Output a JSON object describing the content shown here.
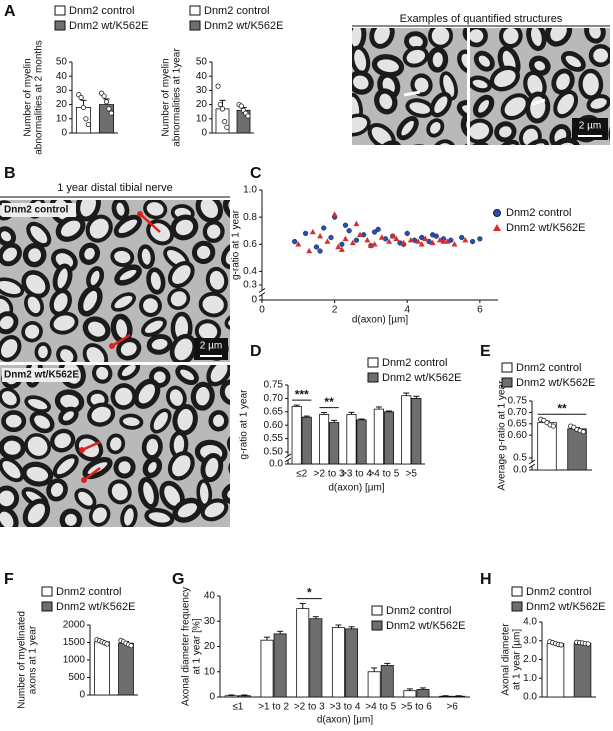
{
  "figure": {
    "panels": [
      "A",
      "B",
      "C",
      "D",
      "E",
      "F",
      "G",
      "H"
    ],
    "a_images": {
      "title": "Examples of quantified structures",
      "scale": "2 µm"
    },
    "b_images": {
      "title": "1 year distal tibial nerve",
      "labels": [
        "Dnm2 control",
        "Dnm2 wt/K562E"
      ],
      "scale": "2 µm"
    }
  },
  "chart_data": [
    {
      "type": "bar",
      "ylabel": [
        "Number of myelin",
        "abnormalities at 2 months"
      ],
      "ylim": [
        0,
        50
      ],
      "yticks": [
        0,
        10,
        20,
        30,
        40,
        50
      ],
      "series": [
        {
          "name": "Dnm2 control",
          "color": "#ffffff",
          "values": [
            18
          ],
          "errors": [
            5
          ],
          "points": [
            [
              27,
              25,
              18,
              10,
              6
            ]
          ]
        },
        {
          "name": "Dnm2 wt/K562E",
          "color": "#6e6e6e",
          "values": [
            20
          ],
          "errors": [
            4
          ],
          "points": [
            [
              28,
              26,
              22,
              17,
              14
            ]
          ]
        }
      ]
    },
    {
      "type": "bar",
      "ylabel": [
        "Number of myelin",
        "abnormalities at 1year"
      ],
      "ylim": [
        0,
        50
      ],
      "yticks": [
        0,
        10,
        20,
        30,
        40,
        50
      ],
      "series": [
        {
          "name": "Dnm2 control",
          "color": "#ffffff",
          "values": [
            17
          ],
          "errors": [
            6
          ],
          "points": [
            [
              33,
              20,
              17,
              8,
              4
            ]
          ]
        },
        {
          "name": "Dnm2 wt/K562E",
          "color": "#6e6e6e",
          "values": [
            16
          ],
          "errors": [
            2
          ],
          "points": [
            [
              20,
              19,
              16,
              14,
              12
            ]
          ]
        }
      ]
    },
    {
      "type": "scatter",
      "ylabel": [
        "g-ratio at 1 year"
      ],
      "xlabel": "d(axon) [µm]",
      "xlim": [
        0,
        6.5
      ],
      "xticks": [
        0,
        2,
        4,
        6
      ],
      "ylim": [
        0.3,
        1.0
      ],
      "yticks": [
        0.3,
        0.4,
        0.6,
        0.8,
        {
          "value": 1,
          "label": "1.0"
        }
      ],
      "ybreak_ticks": [
        0
      ],
      "series": [
        {
          "name": "Dnm2 control",
          "color": "#2a4fa8",
          "marker": "circle",
          "x": [
            0.9,
            1.2,
            1.5,
            1.7,
            1.9,
            2.0,
            2.2,
            2.4,
            2.6,
            2.8,
            3.0,
            3.2,
            3.4,
            3.6,
            3.8,
            4.0,
            4.2,
            4.4,
            4.6,
            4.8,
            5.0,
            5.2,
            5.5,
            5.8,
            6.0,
            1.6,
            2.3,
            3.1,
            3.9,
            4.7
          ],
          "y": [
            0.62,
            0.68,
            0.58,
            0.72,
            0.65,
            0.8,
            0.6,
            0.7,
            0.63,
            0.67,
            0.59,
            0.71,
            0.64,
            0.66,
            0.61,
            0.68,
            0.63,
            0.65,
            0.62,
            0.66,
            0.64,
            0.63,
            0.65,
            0.62,
            0.64,
            0.55,
            0.74,
            0.69,
            0.6,
            0.67
          ]
        },
        {
          "name": "Dnm2 wt/K562E",
          "color": "#d32f2f",
          "marker": "triangle",
          "x": [
            1.0,
            1.3,
            1.6,
            1.8,
            2.0,
            2.1,
            2.3,
            2.5,
            2.7,
            2.9,
            3.1,
            3.3,
            3.5,
            3.7,
            3.9,
            4.1,
            4.3,
            4.5,
            4.7,
            4.9,
            5.1,
            5.3,
            5.6,
            1.4,
            2.2,
            2.6,
            3.0,
            3.6,
            4.4,
            5.0
          ],
          "y": [
            0.6,
            0.55,
            0.66,
            0.62,
            0.82,
            0.58,
            0.64,
            0.61,
            0.67,
            0.63,
            0.6,
            0.65,
            0.62,
            0.64,
            0.61,
            0.63,
            0.62,
            0.64,
            0.61,
            0.63,
            0.62,
            0.6,
            0.63,
            0.69,
            0.56,
            0.75,
            0.59,
            0.66,
            0.6,
            0.62
          ]
        }
      ]
    },
    {
      "type": "bar",
      "ylabel": [
        "g-ratio at 1 year"
      ],
      "xlabel": "d(axon) [µm]",
      "categories": [
        "≤2",
        ">2 to 3",
        ">3 to 4",
        ">4 to 5",
        ">5"
      ],
      "ylim": [
        0.5,
        0.75
      ],
      "yticks": [
        {
          "value": 0.5,
          "label": "0.50"
        },
        0.55,
        {
          "value": 0.6,
          "label": "0.60"
        },
        0.65,
        {
          "value": 0.7,
          "label": "0.70"
        },
        0.75
      ],
      "ybreak_ticks": [
        {
          "value": 0,
          "label": "0.0"
        }
      ],
      "series": [
        {
          "name": "Dnm2 control",
          "color": "#ffffff",
          "values": [
            0.67,
            0.64,
            0.64,
            0.66,
            0.71
          ],
          "errors": [
            0.005,
            0.007,
            0.008,
            0.008,
            0.01
          ]
        },
        {
          "name": "Dnm2 wt/K562E",
          "color": "#6e6e6e",
          "values": [
            0.63,
            0.61,
            0.62,
            0.65,
            0.7
          ],
          "errors": [
            0.004,
            0.008,
            0.003,
            0.003,
            0.008
          ]
        }
      ],
      "annotations": [
        {
          "text": "***",
          "category": "≤2"
        },
        {
          "text": "**",
          "category": ">2 to 3"
        }
      ]
    },
    {
      "type": "bar",
      "ylabel": [
        "Average g-ratio at 1 year"
      ],
      "ylim": [
        0.5,
        0.75
      ],
      "yticks": [
        0.5,
        {
          "value": 0.6,
          "label": "0.60"
        },
        0.65,
        {
          "value": 0.7,
          "label": "0.70"
        },
        0.75
      ],
      "ybreak_ticks": [
        {
          "value": 0,
          "label": "0.0"
        }
      ],
      "series": [
        {
          "name": "Dnm2 control",
          "color": "#ffffff",
          "values": [
            0.655
          ],
          "errors": [
            0.006
          ],
          "points": [
            [
              0.67,
              0.665,
              0.655,
              0.645,
              0.64
            ]
          ]
        },
        {
          "name": "Dnm2 wt/K562E",
          "color": "#6e6e6e",
          "values": [
            0.628
          ],
          "errors": [
            0.005
          ],
          "points": [
            [
              0.64,
              0.635,
              0.625,
              0.62,
              0.615
            ]
          ]
        }
      ],
      "annotations": [
        {
          "text": "**"
        }
      ]
    },
    {
      "type": "bar",
      "ylabel": [
        "Number of myelinated",
        "axons at 1 year"
      ],
      "ylim": [
        0,
        2000
      ],
      "yticks": [
        0,
        500,
        1000,
        1500,
        2000
      ],
      "series": [
        {
          "name": "Dnm2 control",
          "color": "#ffffff",
          "values": [
            1520
          ],
          "errors": [
            40
          ],
          "points": [
            [
              1580,
              1550,
              1520,
              1490,
              1460
            ]
          ]
        },
        {
          "name": "Dnm2 wt/K562E",
          "color": "#6e6e6e",
          "values": [
            1480
          ],
          "errors": [
            50
          ],
          "points": [
            [
              1560,
              1520,
              1480,
              1440,
              1410
            ]
          ]
        }
      ]
    },
    {
      "type": "bar",
      "ylabel": [
        "Axonal diameter frequency",
        "at 1 year [%]"
      ],
      "xlabel": "d(axon) [µm]",
      "categories": [
        "≤1",
        ">1 to 2",
        ">2 to 3",
        ">3 to 4",
        ">4 to 5",
        ">5 to 6",
        ">6"
      ],
      "ylim": [
        0,
        40
      ],
      "yticks": [
        0,
        10,
        20,
        30,
        40
      ],
      "series": [
        {
          "name": "Dnm2 control",
          "color": "#ffffff",
          "values": [
            0.5,
            22.5,
            35,
            27.5,
            10,
            2.5,
            0.3
          ],
          "errors": [
            0.3,
            1.2,
            2,
            1,
            1.5,
            0.7,
            0.2
          ]
        },
        {
          "name": "Dnm2 wt/K562E",
          "color": "#6e6e6e",
          "values": [
            0.5,
            25,
            31,
            27,
            12.5,
            3,
            0.3
          ],
          "errors": [
            0.3,
            1,
            0.8,
            0.8,
            0.8,
            0.6,
            0.2
          ]
        }
      ],
      "annotations": [
        {
          "text": "*",
          "category": ">2 to 3"
        }
      ]
    },
    {
      "type": "bar",
      "ylabel": [
        "Axonal diameter",
        "at 1 year [µm]"
      ],
      "ylim": [
        0,
        4
      ],
      "yticks": [
        {
          "value": 0,
          "label": "0.0"
        },
        {
          "value": 1,
          "label": "1.0"
        },
        {
          "value": 2,
          "label": "2.0"
        },
        {
          "value": 3,
          "label": "3.0"
        },
        {
          "value": 4,
          "label": "4.0"
        }
      ],
      "series": [
        {
          "name": "Dnm2 control",
          "color": "#ffffff",
          "values": [
            2.85
          ],
          "errors": [
            0.05
          ],
          "points": [
            [
              2.95,
              2.9,
              2.85,
              2.8,
              2.78
            ]
          ]
        },
        {
          "name": "Dnm2 wt/K562E",
          "color": "#6e6e6e",
          "values": [
            2.87
          ],
          "errors": [
            0.03
          ],
          "points": [
            [
              2.92,
              2.9,
              2.88,
              2.85,
              2.83
            ]
          ]
        }
      ]
    }
  ]
}
